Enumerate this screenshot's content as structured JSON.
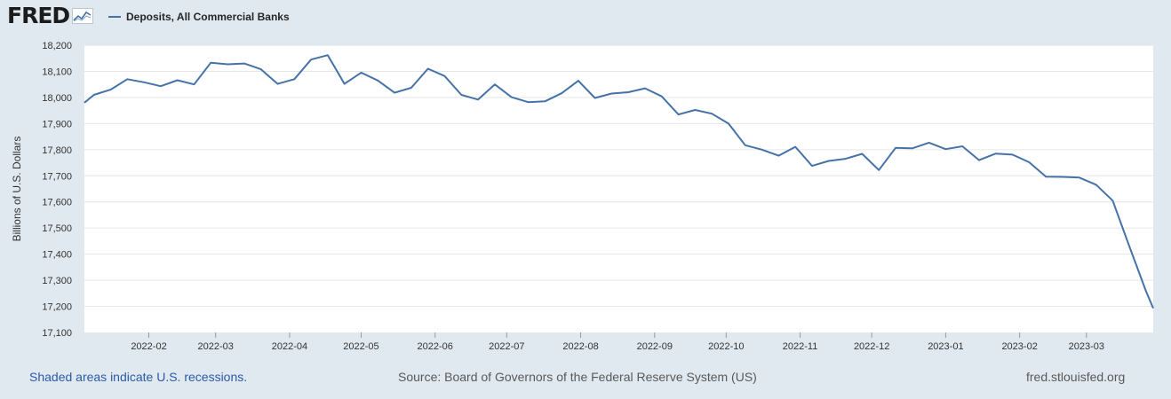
{
  "header": {
    "logo_text": "FRED",
    "series_label": "Deposits, All Commercial Banks"
  },
  "colors": {
    "series": "#4572a7",
    "background": "#e1e9f0",
    "plot_bg": "#ffffff",
    "grid": "#e6e6e6"
  },
  "chart_data": {
    "type": "line",
    "title": "Deposits, All Commercial Banks",
    "xlabel": "",
    "ylabel": "Billions of U.S. Dollars",
    "ylim": [
      17100,
      18200
    ],
    "yticks": [
      17100,
      17200,
      17300,
      17400,
      17500,
      17600,
      17700,
      17800,
      17900,
      18000,
      18100,
      18200
    ],
    "ytick_labels": [
      "17,100",
      "17,200",
      "17,300",
      "17,400",
      "17,500",
      "17,600",
      "17,700",
      "17,800",
      "17,900",
      "18,000",
      "18,100",
      "18,200"
    ],
    "xlim": [
      "2022-01-05",
      "2023-03-29"
    ],
    "xticks": [
      {
        "date": "2022-02-01",
        "label": "2022-02"
      },
      {
        "date": "2022-03-01",
        "label": "2022-03"
      },
      {
        "date": "2022-04-01",
        "label": "2022-04"
      },
      {
        "date": "2022-05-01",
        "label": "2022-05"
      },
      {
        "date": "2022-06-01",
        "label": "2022-06"
      },
      {
        "date": "2022-07-01",
        "label": "2022-07"
      },
      {
        "date": "2022-08-01",
        "label": "2022-08"
      },
      {
        "date": "2022-09-01",
        "label": "2022-09"
      },
      {
        "date": "2022-10-01",
        "label": "2022-10"
      },
      {
        "date": "2022-11-01",
        "label": "2022-11"
      },
      {
        "date": "2022-12-01",
        "label": "2022-12"
      },
      {
        "date": "2023-01-01",
        "label": "2023-01"
      },
      {
        "date": "2023-02-01",
        "label": "2023-02"
      },
      {
        "date": "2023-03-01",
        "label": "2023-03"
      }
    ],
    "grid": true,
    "series": [
      {
        "name": "Deposits, All Commercial Banks",
        "color": "#4572a7",
        "points": [
          [
            "2022-01-05",
            17980
          ],
          [
            "2022-01-09",
            18010
          ],
          [
            "2022-01-16",
            18030
          ],
          [
            "2022-01-23",
            18070
          ],
          [
            "2022-01-30",
            18058
          ],
          [
            "2022-02-06",
            18043
          ],
          [
            "2022-02-13",
            18066
          ],
          [
            "2022-02-20",
            18050
          ],
          [
            "2022-02-27",
            18133
          ],
          [
            "2022-03-06",
            18127
          ],
          [
            "2022-03-13",
            18130
          ],
          [
            "2022-03-20",
            18108
          ],
          [
            "2022-03-27",
            18052
          ],
          [
            "2022-04-03",
            18070
          ],
          [
            "2022-04-10",
            18145
          ],
          [
            "2022-04-17",
            18162
          ],
          [
            "2022-04-24",
            18052
          ],
          [
            "2022-05-01",
            18095
          ],
          [
            "2022-05-08",
            18065
          ],
          [
            "2022-05-15",
            18018
          ],
          [
            "2022-05-22",
            18037
          ],
          [
            "2022-05-29",
            18110
          ],
          [
            "2022-06-05",
            18082
          ],
          [
            "2022-06-12",
            18010
          ],
          [
            "2022-06-19",
            17992
          ],
          [
            "2022-06-26",
            18050
          ],
          [
            "2022-07-03",
            18001
          ],
          [
            "2022-07-10",
            17982
          ],
          [
            "2022-07-17",
            17985
          ],
          [
            "2022-07-24",
            18016
          ],
          [
            "2022-07-31",
            18064
          ],
          [
            "2022-08-07",
            17998
          ],
          [
            "2022-08-14",
            18015
          ],
          [
            "2022-08-21",
            18020
          ],
          [
            "2022-08-28",
            18035
          ],
          [
            "2022-09-04",
            18004
          ],
          [
            "2022-09-11",
            17935
          ],
          [
            "2022-09-18",
            17952
          ],
          [
            "2022-09-25",
            17938
          ],
          [
            "2022-10-02",
            17900
          ],
          [
            "2022-10-09",
            17817
          ],
          [
            "2022-10-16",
            17800
          ],
          [
            "2022-10-23",
            17777
          ],
          [
            "2022-10-30",
            17811
          ],
          [
            "2022-11-06",
            17738
          ],
          [
            "2022-11-13",
            17757
          ],
          [
            "2022-11-20",
            17765
          ],
          [
            "2022-11-27",
            17784
          ],
          [
            "2022-12-04",
            17722
          ],
          [
            "2022-12-11",
            17807
          ],
          [
            "2022-12-18",
            17805
          ],
          [
            "2022-12-25",
            17827
          ],
          [
            "2023-01-01",
            17802
          ],
          [
            "2023-01-08",
            17813
          ],
          [
            "2023-01-15",
            17760
          ],
          [
            "2023-01-22",
            17785
          ],
          [
            "2023-01-29",
            17781
          ],
          [
            "2023-02-05",
            17752
          ],
          [
            "2023-02-12",
            17697
          ],
          [
            "2023-02-19",
            17696
          ],
          [
            "2023-02-26",
            17693
          ],
          [
            "2023-03-05",
            17666
          ],
          [
            "2023-03-12",
            17605
          ],
          [
            "2023-03-19",
            17430
          ],
          [
            "2023-03-26",
            17258
          ],
          [
            "2023-03-29",
            17193
          ]
        ]
      }
    ]
  },
  "footer": {
    "left": "Shaded areas indicate U.S. recessions.",
    "center": "Source: Board of Governors of the Federal Reserve System (US)",
    "right": "fred.stlouisfed.org"
  }
}
